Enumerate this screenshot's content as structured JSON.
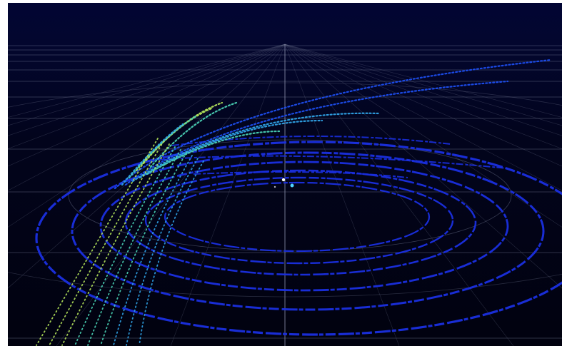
{
  "viewer": {
    "background_top": "#020533",
    "background_bottom": "#01020f",
    "grid_color": "#6f7590",
    "axis_color": "#9aa0bb",
    "near_ring_color": "#1a2fe0",
    "far_strip_colors": [
      "#1c4ef0",
      "#2fa2e6",
      "#49d0b4",
      "#b2e25a"
    ],
    "sensor_marker_colors": [
      "#ffffff",
      "#4fd3ff"
    ]
  }
}
